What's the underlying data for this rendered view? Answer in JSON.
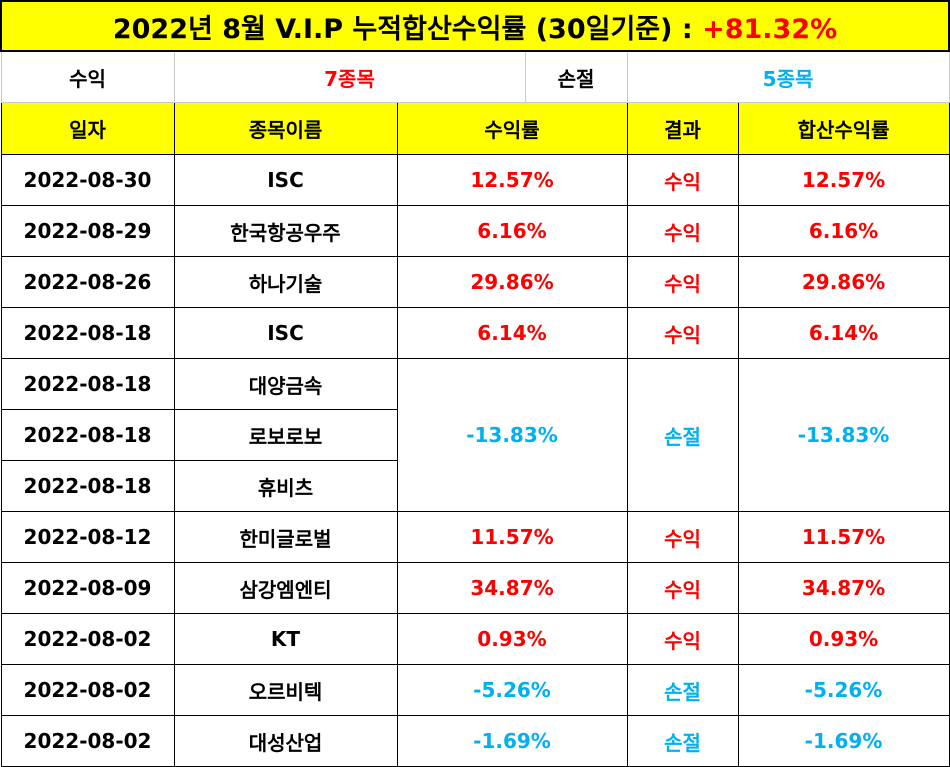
{
  "title": {
    "text": "2022년 8월 V.I.P 누적합산수익률 (30일기준) : ",
    "total": "+81.32%"
  },
  "summary": {
    "gain_label": "수익",
    "gain_count": "7종목",
    "loss_label": "손절",
    "loss_count": "5종목"
  },
  "headers": {
    "date": "일자",
    "name": "종목이름",
    "return": "수익률",
    "result": "결과",
    "total_return": "합산수익률"
  },
  "rows": [
    {
      "date": "2022-08-30",
      "name": "ISC",
      "return": "12.57%",
      "result": "수익",
      "total_return": "12.57%"
    },
    {
      "date": "2022-08-29",
      "name": "한국항공우주",
      "return": "6.16%",
      "result": "수익",
      "total_return": "6.16%"
    },
    {
      "date": "2022-08-26",
      "name": "하나기술",
      "return": "29.86%",
      "result": "수익",
      "total_return": "29.86%"
    },
    {
      "date": "2022-08-18",
      "name": "ISC",
      "return": "6.14%",
      "result": "수익",
      "total_return": "6.14%"
    },
    {
      "date": "2022-08-18",
      "name": "대양금속",
      "return": "-13.83%",
      "result": "손절",
      "total_return": "-13.83%"
    },
    {
      "date": "2022-08-18",
      "name": "로보로보"
    },
    {
      "date": "2022-08-18",
      "name": "휴비츠"
    },
    {
      "date": "2022-08-12",
      "name": "한미글로벌",
      "return": "11.57%",
      "result": "수익",
      "total_return": "11.57%"
    },
    {
      "date": "2022-08-09",
      "name": "삼강엠엔티",
      "return": "34.87%",
      "result": "수익",
      "total_return": "34.87%"
    },
    {
      "date": "2022-08-02",
      "name": "KT",
      "return": "0.93%",
      "result": "수익",
      "total_return": "0.93%"
    },
    {
      "date": "2022-08-02",
      "name": "오르비텍",
      "return": "-5.26%",
      "result": "손절",
      "total_return": "-5.26%"
    },
    {
      "date": "2022-08-02",
      "name": "대성산업",
      "return": "-1.69%",
      "result": "손절",
      "total_return": "-1.69%"
    }
  ],
  "colors": {
    "header_background": "#ffff00",
    "gain": "#ff0000",
    "loss": "#00b0f0",
    "border": "#000000"
  }
}
